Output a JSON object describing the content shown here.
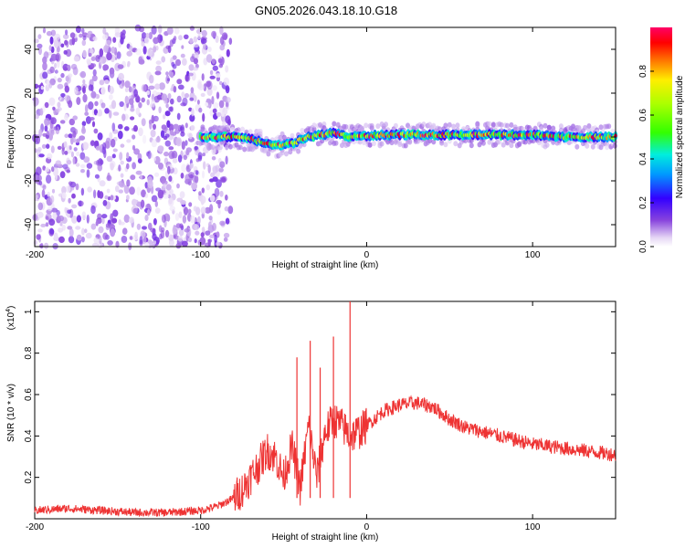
{
  "title": "GN05.2026.043.18.10.G18",
  "chart_data": [
    {
      "type": "heatmap",
      "name": "spectrogram",
      "xlabel": "Height of straight line (km)",
      "ylabel": "Frequency (Hz)",
      "xlim": [
        -200,
        150
      ],
      "ylim": [
        -50,
        50
      ],
      "xticks": [
        -200,
        -100,
        0,
        100
      ],
      "yticks": [
        -40,
        -20,
        0,
        20,
        40
      ],
      "description_of_content": [
        {
          "x_range": [
            -200,
            -82
          ],
          "pattern": "scattered noise",
          "amplitude_range": [
            0.0,
            0.15
          ]
        },
        {
          "x_range": [
            -100,
            150
          ],
          "pattern": "narrow band near 0 Hz",
          "amplitude_range": [
            0.2,
            1.0
          ]
        }
      ],
      "ridge": [
        {
          "x": -100,
          "y": 0
        },
        {
          "x": -80,
          "y": 0
        },
        {
          "x": -70,
          "y": -1
        },
        {
          "x": -55,
          "y": -4
        },
        {
          "x": -45,
          "y": -3
        },
        {
          "x": -35,
          "y": 0
        },
        {
          "x": -20,
          "y": 2
        },
        {
          "x": -10,
          "y": 0
        },
        {
          "x": 10,
          "y": 1
        },
        {
          "x": 40,
          "y": 1
        },
        {
          "x": 60,
          "y": 1
        },
        {
          "x": 80,
          "y": 1
        },
        {
          "x": 100,
          "y": 1
        },
        {
          "x": 120,
          "y": 0
        },
        {
          "x": 150,
          "y": 0
        }
      ],
      "colorbar": {
        "label": "Normalized spectral amplitude",
        "range": [
          0.0,
          1.0
        ],
        "ticks": [
          0.0,
          0.2,
          0.4,
          0.6,
          0.8
        ]
      }
    },
    {
      "type": "line",
      "name": "snr",
      "xlabel": "Height of straight line (km)",
      "ylabel": "SNR (10 * v/v)",
      "y_multiplier_base": "(x10",
      "y_multiplier_exp": "4",
      "y_multiplier_close": ")",
      "xlim": [
        -200,
        150
      ],
      "ylim": [
        0,
        1.05
      ],
      "xticks": [
        -200,
        -100,
        0,
        100
      ],
      "yticks": [
        0.2,
        0.4,
        0.6,
        0.8,
        1.0
      ],
      "color": "#ee3333",
      "x": [
        -200,
        -180,
        -160,
        -140,
        -120,
        -100,
        -90,
        -80,
        -75,
        -70,
        -65,
        -60,
        -55,
        -50,
        -45,
        -40,
        -35,
        -30,
        -25,
        -20,
        -15,
        -10,
        -5,
        0,
        10,
        20,
        30,
        40,
        50,
        60,
        80,
        100,
        120,
        150
      ],
      "y": [
        0.04,
        0.05,
        0.04,
        0.03,
        0.03,
        0.04,
        0.06,
        0.1,
        0.14,
        0.2,
        0.26,
        0.33,
        0.3,
        0.2,
        0.35,
        0.15,
        0.45,
        0.2,
        0.42,
        0.48,
        0.45,
        0.4,
        0.42,
        0.45,
        0.52,
        0.55,
        0.56,
        0.54,
        0.48,
        0.44,
        0.4,
        0.36,
        0.34,
        0.31
      ],
      "spikes": [
        {
          "x": -42,
          "y": 0.78
        },
        {
          "x": -34,
          "y": 0.86
        },
        {
          "x": -28,
          "y": 0.73
        },
        {
          "x": -20,
          "y": 0.88
        },
        {
          "x": -10,
          "y": 1.05
        }
      ]
    }
  ]
}
